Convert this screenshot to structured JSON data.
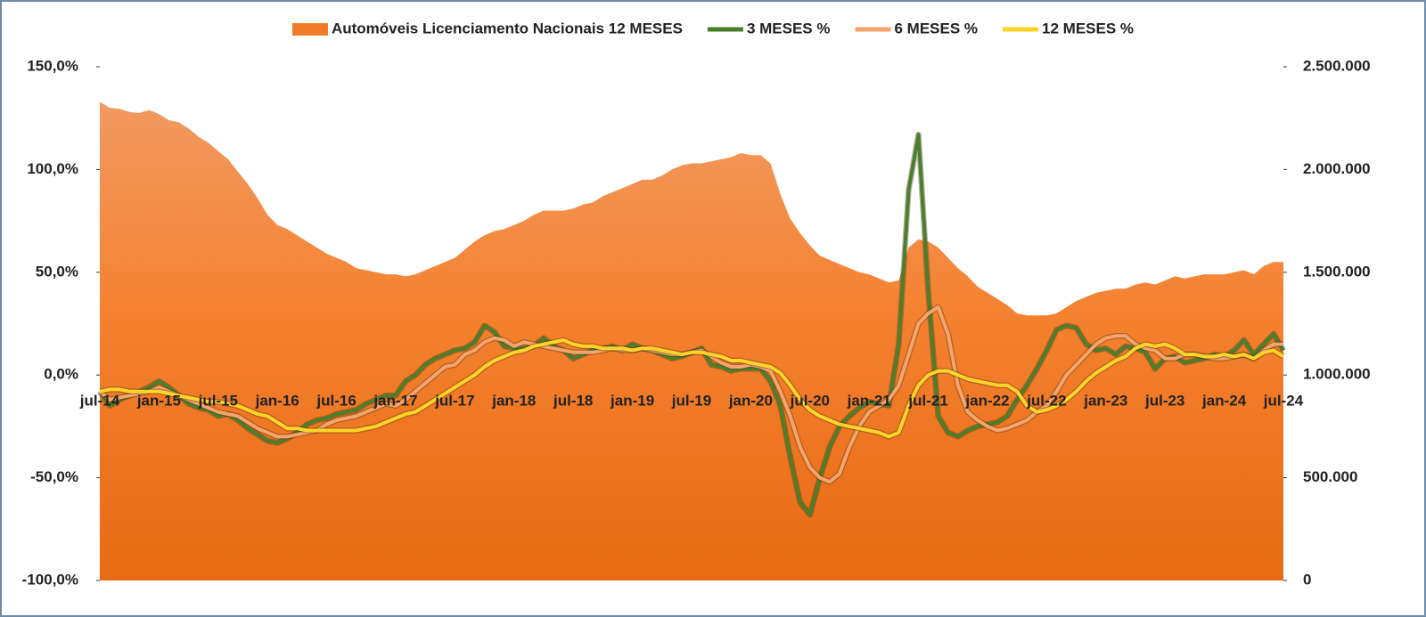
{
  "chart_data": {
    "type": "line",
    "categories": [
      "jul-14",
      null,
      null,
      null,
      null,
      null,
      "jan-15",
      null,
      null,
      null,
      null,
      null,
      "jul-15",
      null,
      null,
      null,
      null,
      null,
      "jan-16",
      null,
      null,
      null,
      null,
      null,
      "jul-16",
      null,
      null,
      null,
      null,
      null,
      "jan-17",
      null,
      null,
      null,
      null,
      null,
      "jul-17",
      null,
      null,
      null,
      null,
      null,
      "jan-18",
      null,
      null,
      null,
      null,
      null,
      "jul-18",
      null,
      null,
      null,
      null,
      null,
      "jan-19",
      null,
      null,
      null,
      null,
      null,
      "jul-19",
      null,
      null,
      null,
      null,
      null,
      "jan-20",
      null,
      null,
      null,
      null,
      null,
      "jul-20",
      null,
      null,
      null,
      null,
      null,
      "jan-21",
      null,
      null,
      null,
      null,
      null,
      "jul-21",
      null,
      null,
      null,
      null,
      null,
      "jan-22",
      null,
      null,
      null,
      null,
      null,
      "jul-22",
      null,
      null,
      null,
      null,
      null,
      "jan-23",
      null,
      null,
      null,
      null,
      null,
      "jul-23",
      null,
      null,
      null,
      null,
      null,
      "jan-24",
      null,
      null,
      null,
      null,
      null,
      "jul-24"
    ],
    "series": [
      {
        "name": "Automóveis Licenciamento Nacionais 12 MESES",
        "type": "area",
        "axis": "y2",
        "color": "#f07c2a",
        "values": [
          2330000,
          2300000,
          2295000,
          2280000,
          2275000,
          2290000,
          2270000,
          2240000,
          2230000,
          2200000,
          2160000,
          2130000,
          2090000,
          2050000,
          1990000,
          1930000,
          1860000,
          1780000,
          1730000,
          1710000,
          1680000,
          1650000,
          1620000,
          1590000,
          1570000,
          1550000,
          1520000,
          1510000,
          1500000,
          1490000,
          1490000,
          1480000,
          1490000,
          1510000,
          1530000,
          1550000,
          1570000,
          1610000,
          1650000,
          1680000,
          1700000,
          1710000,
          1730000,
          1750000,
          1780000,
          1800000,
          1800000,
          1800000,
          1810000,
          1830000,
          1840000,
          1870000,
          1890000,
          1910000,
          1930000,
          1950000,
          1950000,
          1970000,
          2000000,
          2020000,
          2030000,
          2030000,
          2040000,
          2050000,
          2060000,
          2080000,
          2070000,
          2070000,
          2030000,
          1880000,
          1760000,
          1690000,
          1630000,
          1580000,
          1560000,
          1540000,
          1520000,
          1500000,
          1490000,
          1470000,
          1450000,
          1460000,
          1620000,
          1660000,
          1650000,
          1620000,
          1570000,
          1520000,
          1480000,
          1430000,
          1400000,
          1370000,
          1340000,
          1300000,
          1290000,
          1290000,
          1290000,
          1300000,
          1330000,
          1360000,
          1380000,
          1400000,
          1410000,
          1420000,
          1420000,
          1440000,
          1450000,
          1440000,
          1460000,
          1480000,
          1470000,
          1480000,
          1490000,
          1490000,
          1490000,
          1500000,
          1510000,
          1490000,
          1530000,
          1550000,
          1550000
        ]
      },
      {
        "name": "3 MESES %",
        "type": "line",
        "color": "#4a7f2c",
        "values": [
          -8,
          -15,
          -12,
          -10,
          -8,
          -6,
          -3,
          -6,
          -10,
          -14,
          -16,
          -17,
          -20,
          -19,
          -22,
          -26,
          -29,
          -32,
          -33,
          -31,
          -28,
          -24,
          -22,
          -21,
          -19,
          -18,
          -17,
          -14,
          -12,
          -10,
          -10,
          -3,
          0,
          5,
          8,
          10,
          12,
          13,
          16,
          24,
          21,
          14,
          13,
          13,
          14,
          18,
          14,
          12,
          8,
          10,
          12,
          13,
          14,
          12,
          15,
          13,
          12,
          10,
          8,
          9,
          11,
          13,
          5,
          4,
          2,
          3,
          3,
          3,
          -3,
          -15,
          -40,
          -62,
          -68,
          -50,
          -35,
          -25,
          -20,
          -16,
          -13,
          -14,
          -15,
          15,
          90,
          117,
          40,
          -20,
          -28,
          -30,
          -27,
          -25,
          -24,
          -23,
          -20,
          -12,
          -5,
          3,
          12,
          22,
          24,
          23,
          15,
          12,
          13,
          10,
          14,
          13,
          11,
          3,
          8,
          9,
          6,
          7,
          8,
          10,
          9,
          12,
          17,
          10,
          15,
          20,
          12
        ]
      },
      {
        "name": "6 MESES %",
        "type": "line",
        "color": "#f4a46c",
        "values": [
          -8,
          -12,
          -11,
          -10,
          -9,
          -8,
          -6,
          -8,
          -10,
          -12,
          -14,
          -16,
          -18,
          -19,
          -20,
          -23,
          -26,
          -28,
          -30,
          -30,
          -29,
          -28,
          -27,
          -24,
          -22,
          -21,
          -20,
          -18,
          -16,
          -14,
          -15,
          -12,
          -8,
          -4,
          0,
          4,
          5,
          10,
          12,
          16,
          18,
          17,
          14,
          16,
          15,
          14,
          13,
          12,
          11,
          11,
          11,
          12,
          13,
          12,
          12,
          13,
          12,
          11,
          10,
          10,
          11,
          12,
          9,
          6,
          4,
          4,
          5,
          4,
          2,
          -8,
          -20,
          -35,
          -45,
          -50,
          -52,
          -48,
          -35,
          -25,
          -18,
          -15,
          -12,
          -5,
          10,
          25,
          30,
          33,
          20,
          -5,
          -18,
          -22,
          -25,
          -27,
          -26,
          -24,
          -22,
          -18,
          -15,
          -8,
          0,
          5,
          10,
          15,
          18,
          19,
          19,
          15,
          13,
          12,
          8,
          8,
          10,
          10,
          9,
          8,
          8,
          9,
          10,
          8,
          12,
          15,
          15
        ]
      },
      {
        "name": "12 MESES %",
        "type": "line",
        "color": "#ffd42a",
        "values": [
          -8,
          -7,
          -7,
          -8,
          -8,
          -8,
          -8,
          -9,
          -10,
          -11,
          -12,
          -13,
          -13,
          -14,
          -15,
          -17,
          -19,
          -20,
          -23,
          -26,
          -26,
          -27,
          -27,
          -27,
          -27,
          -27,
          -27,
          -26,
          -25,
          -23,
          -21,
          -19,
          -18,
          -15,
          -12,
          -9,
          -6,
          -3,
          0,
          4,
          7,
          9,
          11,
          12,
          14,
          15,
          16,
          17,
          15,
          14,
          14,
          13,
          13,
          13,
          12,
          13,
          13,
          12,
          11,
          10,
          11,
          11,
          10,
          9,
          7,
          7,
          6,
          5,
          4,
          1,
          -5,
          -12,
          -17,
          -20,
          -22,
          -24,
          -25,
          -26,
          -27,
          -28,
          -30,
          -28,
          -15,
          -5,
          0,
          2,
          2,
          0,
          -2,
          -3,
          -4,
          -5,
          -5,
          -8,
          -15,
          -18,
          -17,
          -15,
          -12,
          -8,
          -3,
          1,
          4,
          7,
          9,
          13,
          15,
          14,
          15,
          13,
          10,
          10,
          9,
          9,
          10,
          9,
          10,
          8,
          11,
          12,
          9
        ]
      }
    ],
    "ylim": [
      -100,
      150
    ],
    "yticks": [
      {
        "value": -100,
        "label": "-100,0%"
      },
      {
        "value": -50,
        "label": "-50,0%"
      },
      {
        "value": 0,
        "label": "0,0%"
      },
      {
        "value": 50,
        "label": "50,0%"
      },
      {
        "value": 100,
        "label": "100,0%"
      },
      {
        "value": 150,
        "label": "150,0%"
      }
    ],
    "y2lim": [
      0,
      2500000
    ],
    "y2ticks": [
      0,
      {
        "value": 500000,
        "label": "500.000"
      },
      {
        "value": 1000000,
        "label": "1.000.000"
      },
      {
        "value": 1500000,
        "label": "1.500.000"
      },
      {
        "value": 2000000,
        "label": "2.000.000"
      },
      {
        "value": 2500000,
        "label": "2.500.000"
      }
    ],
    "legend": "top"
  }
}
